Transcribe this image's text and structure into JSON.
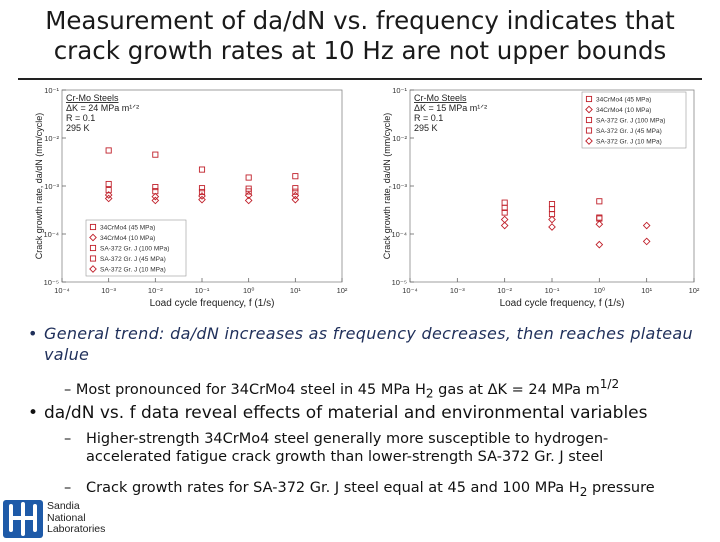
{
  "slide": {
    "title_line1": "Measurement of da/dN vs. frequency indicates that",
    "title_line2": "crack growth rates at 10 Hz are not upper bounds",
    "bullet1": "General trend: da/dN increases as frequency decreases, then reaches plateau value",
    "sub1_prefix": "– Most pronounced for 34CrMo4 steel in 45 MPa H",
    "sub1_h2": "2",
    "sub1_mid": " gas at ",
    "sub1_delta": "ΔK",
    "sub1_value": " = 24 MPa m",
    "sub1_exp": "1/2",
    "bullet2": "da/dN vs. f data reveal effects of material and environmental variables",
    "sub2_line1": "Higher-strength 34CrMo4 steel generally more susceptible to hydrogen-",
    "sub2_line2": "accelerated fatigue crack growth than lower-strength SA-372 Gr. J steel",
    "sub3_prefix": "Crack growth rates for SA-372 Gr. J steel equal at 45 and 100 MPa H",
    "sub3_h2": "2",
    "sub3_suffix": " pressure",
    "logo_line1": "Sandia",
    "logo_line2": "National",
    "logo_line3": "Laboratories",
    "bullet_char": "•",
    "dash_char": "–"
  },
  "colors": {
    "title": "#1a1a1a",
    "bullet1": "#1f2f5a",
    "marker": "#c0202a",
    "logo": "#1e5aa8"
  },
  "chart_data": [
    {
      "type": "scatter",
      "xlabel": "Load cycle frequency, f  (1/s)",
      "ylabel": "Crack growth rate, da/dN  (mm/cycle)",
      "xscale": "log",
      "yscale": "log",
      "xlim": [
        0.0001,
        100
      ],
      "ylim": [
        1e-05,
        0.1
      ],
      "xticks": [
        "10⁻⁴",
        "10⁻³",
        "10⁻²",
        "10⁻¹",
        "10⁰",
        "10¹",
        "10²"
      ],
      "yticks": [
        "10⁻¹",
        "10⁻²",
        "10⁻³",
        "10⁻⁴",
        "10⁻⁵"
      ],
      "annotation": [
        "Cr-Mo Steels",
        "ΔK = 24 MPa m¹ᐟ²",
        "R = 0.1",
        "295 K"
      ],
      "legend_position": "bottom-left",
      "series": [
        {
          "name": "34CrMo4 (45 MPa)",
          "marker": "square",
          "x": [
            0.001,
            0.01,
            0.1,
            1,
            10
          ],
          "y": [
            0.0055,
            0.0045,
            0.0022,
            0.0015,
            0.0016
          ]
        },
        {
          "name": "34CrMo4 (10 MPa)",
          "marker": "diamond",
          "x": [
            0.001,
            0.01,
            0.1,
            1,
            10
          ],
          "y": [
            0.00065,
            0.0006,
            0.00062,
            0.00064,
            0.00063
          ]
        },
        {
          "name": "SA-372 Gr. J (100 MPa)",
          "marker": "square",
          "x": [
            0.001,
            0.01,
            0.1,
            1,
            10
          ],
          "y": [
            0.0011,
            0.00095,
            0.0009,
            0.00088,
            0.0009
          ]
        },
        {
          "name": "SA-372 Gr. J (45 MPa)",
          "marker": "square",
          "x": [
            0.001,
            0.01,
            0.1,
            1,
            10
          ],
          "y": [
            0.00082,
            0.00078,
            0.00075,
            0.00077,
            0.00076
          ]
        },
        {
          "name": "SA-372 Gr. J (10 MPa)",
          "marker": "diamond",
          "x": [
            0.001,
            0.01,
            0.1,
            1,
            10
          ],
          "y": [
            0.00055,
            0.0005,
            0.00052,
            0.0005,
            0.00052
          ]
        }
      ]
    },
    {
      "type": "scatter",
      "xlabel": "Load cycle frequency, f  (1/s)",
      "ylabel": "Crack growth rate, da/dN  (mm/cycle)",
      "xscale": "log",
      "yscale": "log",
      "xlim": [
        0.0001,
        100
      ],
      "ylim": [
        1e-05,
        0.1
      ],
      "xticks": [
        "10⁻⁴",
        "10⁻³",
        "10⁻²",
        "10⁻¹",
        "10⁰",
        "10¹",
        "10²"
      ],
      "yticks": [
        "10⁻¹",
        "10⁻²",
        "10⁻³",
        "10⁻⁴",
        "10⁻⁵"
      ],
      "annotation": [
        "Cr-Mo Steels",
        "ΔK = 15 MPa m¹ᐟ²",
        "R = 0.1",
        "295 K"
      ],
      "legend_position": "top-right",
      "series": [
        {
          "name": "34CrMo4 (45 MPa)",
          "marker": "square",
          "x": [
            0.01,
            0.1,
            1
          ],
          "y": [
            0.00045,
            0.00042,
            0.00048
          ]
        },
        {
          "name": "34CrMo4 (10 MPa)",
          "marker": "diamond",
          "x": [
            0.01,
            0.1,
            1,
            10
          ],
          "y": [
            0.00015,
            0.00014,
            6e-05,
            7e-05
          ]
        },
        {
          "name": "SA-372 Gr. J (100 MPa)",
          "marker": "square",
          "x": [
            0.01,
            0.1,
            1
          ],
          "y": [
            0.00035,
            0.00033,
            0.00022
          ]
        },
        {
          "name": "SA-372 Gr. J (45 MPa)",
          "marker": "square",
          "x": [
            0.01,
            0.1,
            1
          ],
          "y": [
            0.00028,
            0.00026,
            0.00021
          ]
        },
        {
          "name": "SA-372 Gr. J (10 MPa)",
          "marker": "diamond",
          "x": [
            0.01,
            0.1,
            1,
            10
          ],
          "y": [
            0.0002,
            0.0002,
            0.00016,
            0.00015
          ]
        }
      ]
    }
  ]
}
